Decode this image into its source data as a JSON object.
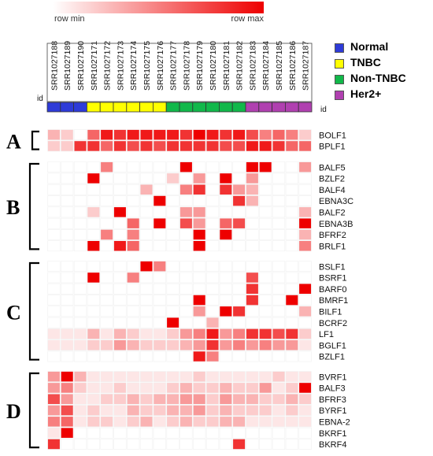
{
  "scale": {
    "min_label": "row min",
    "max_label": "row max",
    "min_color": "#ffffff",
    "max_color": "#ee0000"
  },
  "legend": [
    {
      "label": "Normal",
      "color": "#2e3bd8"
    },
    {
      "label": "TNBC",
      "color": "#ffff00"
    },
    {
      "label": "Non-TNBC",
      "color": "#11b84a"
    },
    {
      "label": "Her2+",
      "color": "#b040b0"
    }
  ],
  "chart_data": {
    "type": "heatmap",
    "id_label": "id",
    "columns": [
      "SRR1027188",
      "SRR1027189",
      "SRR1027190",
      "SRR1027171",
      "SRR1027172",
      "SRR1027173",
      "SRR1027174",
      "SRR1027175",
      "SRR1027176",
      "SRR1027177",
      "SRR1027178",
      "SRR1027179",
      "SRR1027180",
      "SRR1027181",
      "SRR1027182",
      "SRR1027183",
      "SRR1027184",
      "SRR1027185",
      "SRR1027186",
      "SRR1027187"
    ],
    "column_groups": [
      "Normal",
      "Normal",
      "Normal",
      "TNBC",
      "TNBC",
      "TNBC",
      "TNBC",
      "TNBC",
      "TNBC",
      "Non-TNBC",
      "Non-TNBC",
      "Non-TNBC",
      "Non-TNBC",
      "Non-TNBC",
      "Non-TNBC",
      "Her2+",
      "Her2+",
      "Her2+",
      "Her2+",
      "Her2+"
    ],
    "groups": [
      {
        "label": "A",
        "rows": [
          {
            "gene": "BOLF1",
            "values": [
              0.3,
              0.2,
              0.0,
              0.6,
              0.9,
              0.8,
              0.9,
              0.9,
              0.9,
              0.9,
              0.8,
              1.0,
              0.9,
              0.8,
              0.9,
              0.7,
              0.5,
              0.6,
              0.5,
              0.2
            ]
          },
          {
            "gene": "BPLF1",
            "values": [
              0.2,
              0.2,
              0.8,
              0.8,
              0.6,
              0.8,
              0.7,
              0.8,
              0.7,
              0.8,
              0.8,
              0.8,
              0.8,
              0.7,
              0.7,
              0.9,
              0.9,
              0.8,
              0.6,
              0.6
            ]
          }
        ]
      },
      {
        "label": "B",
        "rows": [
          {
            "gene": "BALF5",
            "values": [
              0,
              0,
              0,
              0,
              0.5,
              0,
              0,
              0,
              0,
              0,
              1.0,
              0,
              0,
              0,
              0,
              1.0,
              1.0,
              0,
              0,
              0.4
            ]
          },
          {
            "gene": "BZLF2",
            "values": [
              0,
              0,
              0,
              1.0,
              0,
              0,
              0,
              0,
              0,
              0.2,
              0,
              0.4,
              0,
              1.0,
              0,
              0.4,
              0,
              0,
              0,
              0
            ]
          },
          {
            "gene": "BALF4",
            "values": [
              0,
              0,
              0,
              0,
              0,
              0,
              0,
              0.3,
              0,
              0,
              0.5,
              0.8,
              0,
              0.8,
              0.4,
              0.3,
              0,
              0,
              0,
              0
            ]
          },
          {
            "gene": "EBNA3C",
            "values": [
              0,
              0,
              0,
              0,
              0,
              0,
              0,
              0,
              1.0,
              0,
              0,
              0,
              0,
              0,
              0.8,
              0.3,
              0,
              0,
              0,
              0
            ]
          },
          {
            "gene": "BALF2",
            "values": [
              0,
              0,
              0,
              0.2,
              0,
              1.0,
              0,
              0,
              0,
              0,
              0.4,
              0.4,
              0,
              0,
              0,
              0,
              0,
              0,
              0,
              0.3
            ]
          },
          {
            "gene": "EBNA3B",
            "values": [
              0,
              0,
              0,
              0,
              0,
              0,
              0.6,
              0,
              1.0,
              0,
              0.7,
              0.4,
              0,
              0.6,
              0.7,
              0,
              0,
              0,
              0,
              1.0
            ]
          },
          {
            "gene": "BFRF2",
            "values": [
              0,
              0,
              0,
              0,
              0.5,
              0,
              0.5,
              0,
              0,
              0,
              0,
              1.0,
              0,
              1.0,
              0,
              0,
              0,
              0,
              0,
              0.3
            ]
          },
          {
            "gene": "BRLF1",
            "values": [
              0,
              0,
              0,
              1.0,
              0,
              0.9,
              0.6,
              0,
              0,
              0,
              0,
              1.0,
              0,
              0,
              0,
              0,
              0,
              0,
              0,
              0.5
            ]
          }
        ]
      },
      {
        "label": "C",
        "rows": [
          {
            "gene": "BSLF1",
            "values": [
              0,
              0,
              0,
              0,
              0,
              0,
              0,
              1.0,
              0.5,
              0,
              0,
              0,
              0,
              0,
              0,
              0,
              0,
              0,
              0,
              0
            ]
          },
          {
            "gene": "BSRF1",
            "values": [
              0,
              0,
              0,
              1.0,
              0,
              0,
              0.5,
              0,
              0,
              0,
              0,
              0,
              0,
              0,
              0,
              0.7,
              0,
              0,
              0,
              0
            ]
          },
          {
            "gene": "BARF0",
            "values": [
              0,
              0,
              0,
              0,
              0,
              0,
              0,
              0,
              0,
              0,
              0,
              0,
              0,
              0,
              0,
              0.8,
              0,
              0,
              0,
              1.0
            ]
          },
          {
            "gene": "BMRF1",
            "values": [
              0,
              0,
              0,
              0,
              0,
              0,
              0,
              0,
              0,
              0,
              0,
              1.0,
              0,
              0,
              0,
              0.8,
              0,
              0,
              1.0,
              0
            ]
          },
          {
            "gene": "BILF1",
            "values": [
              0,
              0,
              0,
              0,
              0,
              0,
              0,
              0,
              0,
              0,
              0,
              0.4,
              0,
              1.0,
              0.8,
              0,
              0,
              0,
              0,
              0.3
            ]
          },
          {
            "gene": "BCRF2",
            "values": [
              0,
              0,
              0,
              0,
              0,
              0,
              0,
              0,
              0,
              1.0,
              0,
              0,
              0.3,
              0,
              0,
              0,
              0,
              0,
              0,
              0
            ]
          },
          {
            "gene": "LF1",
            "values": [
              0.1,
              0.1,
              0.1,
              0.3,
              0.1,
              0.3,
              0.2,
              0.1,
              0.1,
              0.2,
              0.4,
              0.5,
              0.9,
              0.4,
              0.5,
              0.8,
              0.8,
              0.7,
              0.8,
              0.2
            ]
          },
          {
            "gene": "BGLF1",
            "values": [
              0.1,
              0.1,
              0.1,
              0.2,
              0.2,
              0.4,
              0.3,
              0.2,
              0.2,
              0.2,
              0.3,
              0.4,
              0.8,
              0.4,
              0.5,
              0.4,
              0.5,
              0.4,
              0.4,
              0.1
            ]
          },
          {
            "gene": "BZLF1",
            "values": [
              0,
              0,
              0,
              0,
              0,
              0,
              0,
              0,
              0,
              0,
              0,
              0.9,
              0.5,
              0,
              0,
              0,
              0,
              0,
              0,
              0
            ]
          }
        ]
      },
      {
        "label": "D",
        "rows": [
          {
            "gene": "BVRF1",
            "values": [
              0.4,
              1.0,
              0.3,
              0.1,
              0.1,
              0.1,
              0.1,
              0.1,
              0.1,
              0.1,
              0.1,
              0.2,
              0.1,
              0.1,
              0.1,
              0.1,
              0.1,
              0.2,
              0.1,
              0.1
            ]
          },
          {
            "gene": "BALF3",
            "values": [
              0.4,
              0.5,
              0.2,
              0.1,
              0.1,
              0.2,
              0.1,
              0.1,
              0.1,
              0.2,
              0.3,
              0.2,
              0.2,
              0.3,
              0.2,
              0.2,
              0.4,
              0.1,
              0.2,
              1.0
            ]
          },
          {
            "gene": "BFRF3",
            "values": [
              0.7,
              0.4,
              0.1,
              0.1,
              0.2,
              0.2,
              0.3,
              0.2,
              0.3,
              0.3,
              0.4,
              0.4,
              0.2,
              0.4,
              0.3,
              0.3,
              0.2,
              0.2,
              0.3,
              0.2
            ]
          },
          {
            "gene": "BYRF1",
            "values": [
              0.4,
              0.7,
              0.1,
              0.2,
              0.1,
              0.1,
              0.3,
              0.2,
              0.2,
              0.3,
              0.3,
              0.4,
              0.2,
              0.3,
              0.2,
              0.2,
              0.2,
              0.1,
              0.2,
              0.1
            ]
          },
          {
            "gene": "EBNA-2",
            "values": [
              0.5,
              0.6,
              0.1,
              0.2,
              0.2,
              0.1,
              0.2,
              0.3,
              0.1,
              0.2,
              0.3,
              0.2,
              0.2,
              0.3,
              0.3,
              0.1,
              0.1,
              0.1,
              0.1,
              0.1
            ]
          },
          {
            "gene": "BKRF1",
            "values": [
              0.1,
              1.0,
              0,
              0,
              0,
              0,
              0,
              0,
              0,
              0,
              0,
              0,
              0,
              0,
              0,
              0,
              0,
              0,
              0,
              0
            ]
          },
          {
            "gene": "BKRF4",
            "values": [
              0.8,
              0,
              0,
              0,
              0,
              0,
              0,
              0,
              0,
              0,
              0,
              0,
              0,
              0,
              0.8,
              0,
              0,
              0,
              0,
              0
            ]
          }
        ]
      }
    ]
  }
}
